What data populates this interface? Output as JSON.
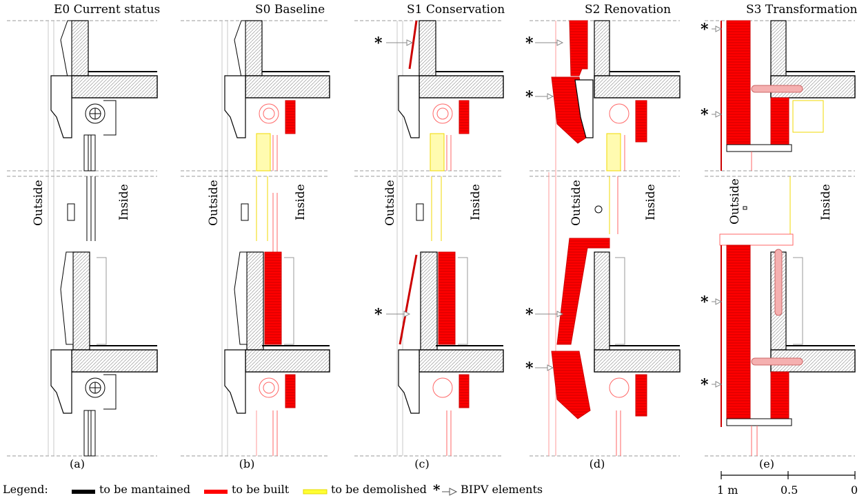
{
  "panels": [
    {
      "id": "E0",
      "title": "E0 Current status",
      "caption": "(a)",
      "outside": "Outside",
      "inside": "Inside"
    },
    {
      "id": "S0",
      "title": "S0 Baseline",
      "caption": "(b)",
      "outside": "Outside",
      "inside": "Inside"
    },
    {
      "id": "S1",
      "title": "S1 Conservation",
      "caption": "(c)",
      "outside": "Outside",
      "inside": "Inside"
    },
    {
      "id": "S2",
      "title": "S2 Renovation",
      "caption": "(d)",
      "outside": "Outside",
      "inside": "Inside"
    },
    {
      "id": "S3",
      "title": "S3 Transformation",
      "caption": "(e)",
      "outside": "Outside",
      "inside": "Inside"
    }
  ],
  "bipv_marker": "*",
  "legend": {
    "label": "Legend:",
    "items": [
      {
        "name": "maintained",
        "text": "to be mantained",
        "color": "#000000"
      },
      {
        "name": "built",
        "text": "to be built",
        "color": "#ff0000"
      },
      {
        "name": "demolished",
        "text": "to be demolished",
        "color": "#ffff33"
      },
      {
        "name": "bipv",
        "text": "BIPV elements",
        "marker": "*"
      }
    ]
  },
  "scale_bar": {
    "labels": [
      "1 m",
      "0.5",
      "0"
    ]
  },
  "colors": {
    "maintained": "#000000",
    "built": "#ff0000",
    "demolished": "#f3e600",
    "insulation": "#bbbbbb",
    "guide": "#aaaaaa"
  }
}
